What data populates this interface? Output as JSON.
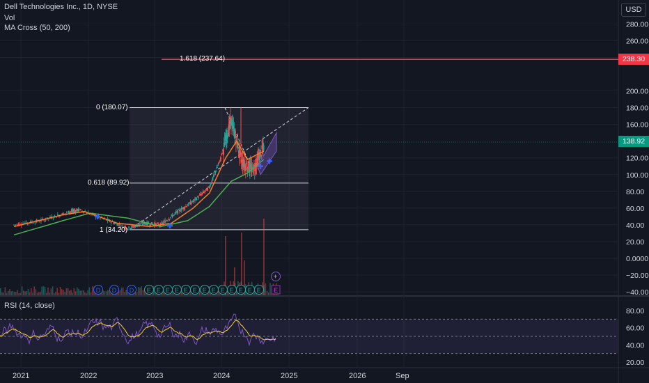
{
  "header": {
    "title": "Dell Technologies Inc., 1D, NYSE",
    "vol_label": "Vol",
    "ma_label": "MA Cross (50, 200)",
    "currency": "USD",
    "rsi_label": "RSI (14, close)"
  },
  "price_axis": {
    "ticks": [
      "280.00",
      "260.00",
      "240.00",
      "200.00",
      "180.00",
      "160.00",
      "120.00",
      "100.00",
      "80.00",
      "60.00",
      "40.00",
      "20.00",
      "0.0000",
      "−20.00",
      "−40.00"
    ],
    "tick_values": [
      280,
      260,
      240,
      200,
      180,
      160,
      120,
      100,
      80,
      60,
      40,
      20,
      0,
      -20,
      -40
    ],
    "current_price": "138.92",
    "target_price": "238.30"
  },
  "rsi_axis": {
    "ticks": [
      "80.00",
      "60.00",
      "40.00",
      "20.00"
    ],
    "tick_values": [
      80,
      60,
      40,
      20
    ]
  },
  "time_axis": {
    "labels": [
      "2021",
      "2022",
      "2023",
      "2024",
      "2025",
      "2026",
      "Sep"
    ]
  },
  "fib_labels": {
    "top": "0 (180.07)",
    "mid": "0.618 (89.92)",
    "bottom": "1 (34.20)",
    "ext": "1.618 (237.64)"
  },
  "event_markers": [
    "D",
    "D",
    "D",
    "E",
    "E",
    "E",
    "E",
    "E",
    "E",
    "E",
    "E",
    "E",
    "E",
    "E",
    "E",
    "E"
  ],
  "colors": {
    "background": "#131722",
    "grid": "#1e222d",
    "candle_up": "#26a69a",
    "candle_down": "#ef5350",
    "ma50": "#f57c2b",
    "ma200": "#4caf50",
    "rsi": "#7e57c2",
    "rsi_ma": "#f5d033",
    "target_line": "#f23645",
    "current_badge": "#089981"
  },
  "chart_data": {
    "type": "line",
    "title": "Dell Technologies Inc., 1D, NYSE",
    "x_range": [
      "2021-01",
      "2026-09"
    ],
    "y_range": [
      -40,
      290
    ],
    "series": [
      {
        "name": "Price",
        "x": [
          "2021-01",
          "2021-06",
          "2021-11",
          "2022-01",
          "2022-06",
          "2022-10",
          "2023-01",
          "2023-04",
          "2023-07",
          "2023-10",
          "2024-01",
          "2024-03",
          "2024-05",
          "2024-07",
          "2024-09",
          "2024-11"
        ],
        "values": [
          40,
          45,
          55,
          58,
          46,
          36,
          42,
          40,
          55,
          68,
          85,
          118,
          165,
          115,
          105,
          133
        ]
      },
      {
        "name": "MA Cross (50)",
        "x": [
          "2021-01",
          "2021-10",
          "2022-02",
          "2022-08",
          "2023-02",
          "2023-06",
          "2023-10",
          "2024-01",
          "2024-04",
          "2024-06",
          "2024-08",
          "2024-11"
        ],
        "values": [
          38,
          52,
          56,
          42,
          38,
          42,
          60,
          78,
          120,
          140,
          118,
          128
        ]
      },
      {
        "name": "MA Cross (200)",
        "x": [
          "2021-01",
          "2021-10",
          "2022-03",
          "2022-10",
          "2023-04",
          "2023-09",
          "2024-01",
          "2024-05",
          "2024-08",
          "2024-11"
        ],
        "values": [
          28,
          45,
          54,
          48,
          38,
          45,
          62,
          92,
          102,
          118
        ]
      }
    ],
    "fibonacci": {
      "level_0": 180.07,
      "level_0_618": 89.92,
      "level_1": 34.2,
      "level_1_618": 237.64
    },
    "rsi": {
      "upper": 70,
      "middle": 50,
      "lower": 30,
      "last": 60
    }
  }
}
